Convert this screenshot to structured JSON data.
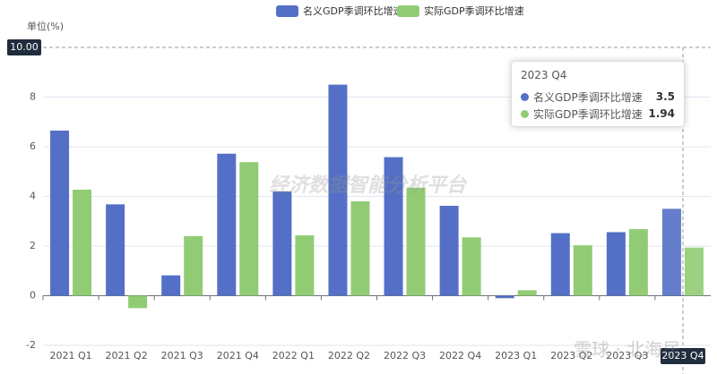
{
  "chart_data": {
    "type": "bar",
    "unit_label": "单位(%)",
    "categories": [
      "2021 Q1",
      "2021 Q2",
      "2021 Q3",
      "2021 Q4",
      "2022 Q1",
      "2022 Q2",
      "2022 Q3",
      "2022 Q4",
      "2023 Q1",
      "2023 Q2",
      "2023 Q3",
      "2023 Q4"
    ],
    "series": [
      {
        "name": "名义GDP季调环比增速",
        "color": "#5470c6",
        "values": [
          6.65,
          3.68,
          0.82,
          5.72,
          4.2,
          8.5,
          5.58,
          3.62,
          -0.1,
          2.52,
          2.56,
          3.5
        ]
      },
      {
        "name": "实际GDP季调环比增速",
        "color": "#91cc75",
        "values": [
          4.27,
          -0.5,
          2.4,
          5.38,
          2.43,
          3.8,
          4.35,
          2.35,
          0.22,
          2.03,
          2.68,
          1.94
        ]
      }
    ],
    "ylim": [
      -2,
      10
    ],
    "yticks": [
      -2,
      0,
      2,
      4,
      6,
      8
    ],
    "grid": true,
    "axis_pointer": {
      "value": 10,
      "label": "10.00"
    },
    "tooltip": {
      "category_index": 11,
      "title": "2023 Q4"
    },
    "watermarks": [
      "经济数据智能分析平台",
      "雪球 · 北海居"
    ]
  }
}
